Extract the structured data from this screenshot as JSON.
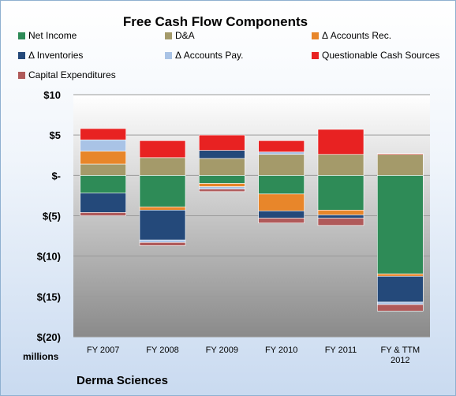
{
  "chart_data": {
    "type": "bar",
    "stacked": true,
    "title": "Free Cash Flow Components",
    "categories": [
      "FY 2007",
      "FY 2008",
      "FY 2009",
      "FY 2010",
      "FY 2011",
      "FY & TTM 2012"
    ],
    "yticks": [
      "$10",
      "$5",
      "$-",
      "$(5)",
      "$(10)",
      "$(15)",
      "$(20)"
    ],
    "ylim": [
      -20,
      10
    ],
    "ylabel": "millions",
    "source_label": "Derma Sciences",
    "legend_position": "top",
    "grid": true,
    "series": [
      {
        "name": "Net Income",
        "color": "#2e8b57",
        "values": [
          -2.2,
          -3.9,
          -1.0,
          -2.3,
          -4.3,
          -12.2
        ]
      },
      {
        "name": "D&A",
        "color": "#a49a6a",
        "values": [
          1.4,
          2.2,
          2.1,
          2.6,
          2.6,
          2.6
        ]
      },
      {
        "name": "Δ Accounts Rec.",
        "color": "#e8862a",
        "values": [
          1.6,
          -0.4,
          -0.4,
          -2.1,
          -0.6,
          -0.3
        ]
      },
      {
        "name": "Δ Inventories",
        "color": "#24497a",
        "values": [
          -2.4,
          -3.7,
          1.0,
          -0.9,
          -0.4,
          -3.2
        ]
      },
      {
        "name": "Δ Accounts Pay.",
        "color": "#a9c3e6",
        "values": [
          1.4,
          -0.3,
          -0.3,
          0.3,
          0.0,
          -0.3
        ]
      },
      {
        "name": "Questionable Cash Sources",
        "color": "#e82222",
        "values": [
          1.4,
          2.1,
          1.9,
          1.4,
          3.1,
          0.1
        ]
      },
      {
        "name": "Capital Expenditures",
        "color": "#b05a5a",
        "values": [
          -0.4,
          -0.4,
          -0.3,
          -0.6,
          -0.9,
          -0.8
        ]
      }
    ]
  }
}
